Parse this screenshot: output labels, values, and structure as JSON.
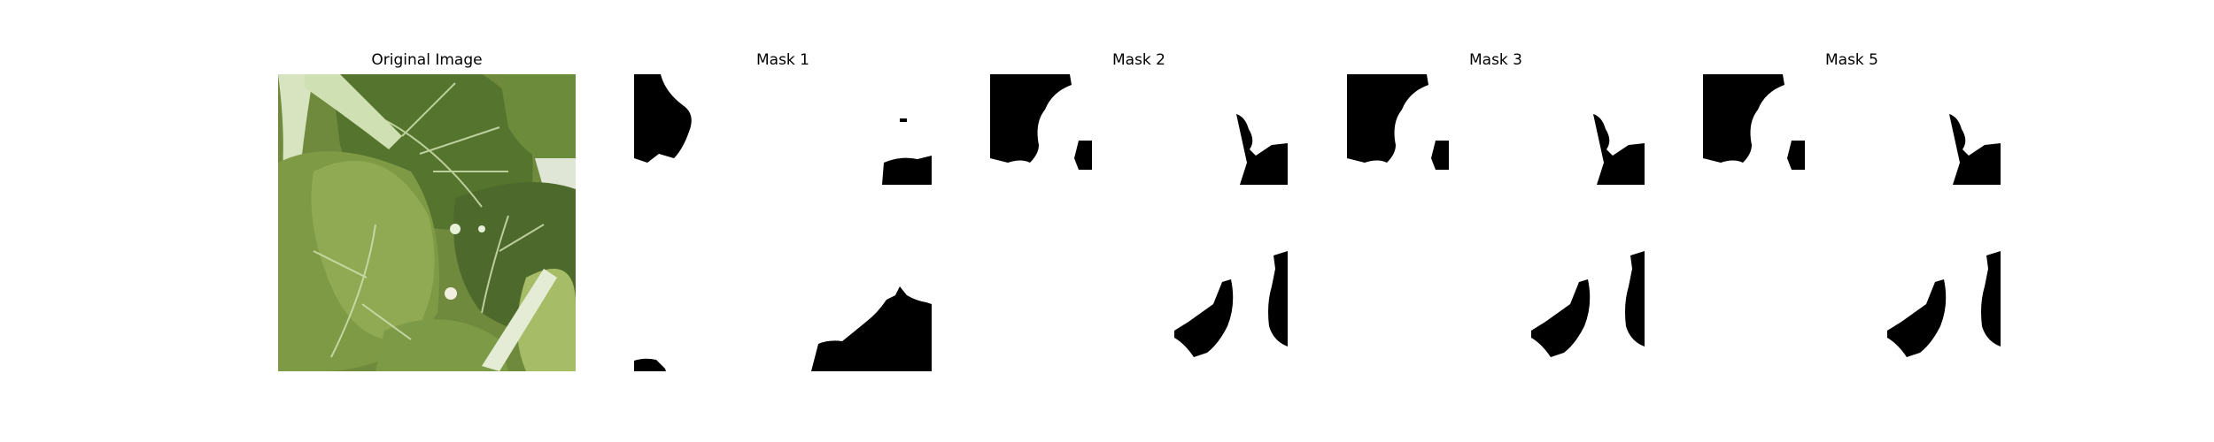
{
  "panels": [
    {
      "title": "Original Image",
      "image": "photo of green leafy vegetable leaves (bok choy) with pale stems"
    },
    {
      "title": "Mask 1",
      "image": "binary segmentation mask"
    },
    {
      "title": "Mask 2",
      "image": "binary segmentation mask"
    },
    {
      "title": "Mask 3",
      "image": "binary segmentation mask"
    },
    {
      "title": "Mask 5",
      "image": "binary segmentation mask"
    }
  ],
  "colors": {
    "background": "#ffffff",
    "mask_foreground": "#000000",
    "leaf_dark": "#4f6b2a",
    "leaf_light": "#9fb86a",
    "stem": "#e6eedc"
  }
}
